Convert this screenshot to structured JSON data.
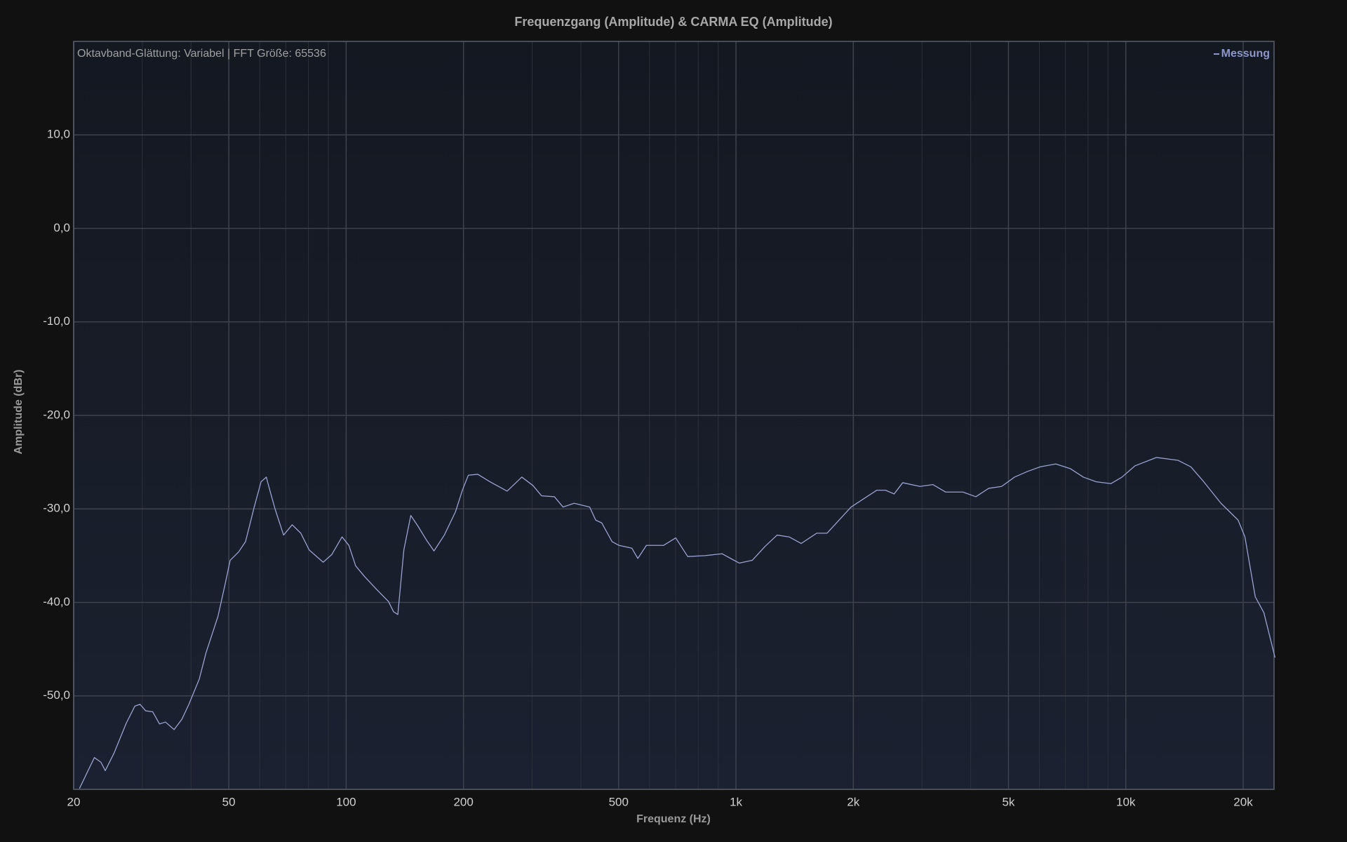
{
  "chart_data": {
    "type": "line",
    "title": "Frequenzgang (Amplitude) & CARMA EQ (Amplitude)",
    "annotation": "Oktavband-Glättung: Variabel | FFT Größe: 65536",
    "x_label": "Frequenz (Hz)",
    "y_label": "Amplitude (dBr)",
    "xscale": "log",
    "grid": true,
    "legend": "top-right",
    "xlim": [
      20,
      24000
    ],
    "ylim": [
      -60,
      20
    ],
    "xticks": [
      20,
      50,
      100,
      200,
      500,
      {
        "value": 1000,
        "label": "1k"
      },
      {
        "value": 2000,
        "label": "2k"
      },
      {
        "value": 5000,
        "label": "5k"
      },
      {
        "value": 10000,
        "label": "10k"
      },
      {
        "value": 20000,
        "label": "20k"
      }
    ],
    "yticks": [
      {
        "value": -50,
        "label": "-50,0"
      },
      {
        "value": -40,
        "label": "-40,0"
      },
      {
        "value": -30,
        "label": "-30,0"
      },
      {
        "value": -20,
        "label": "-20,0"
      },
      {
        "value": -10,
        "label": "-10,0"
      },
      {
        "value": 0,
        "label": "0,0"
      },
      {
        "value": 10,
        "label": "10,0"
      }
    ],
    "x": [
      20.7,
      22.6,
      23.5,
      24.1,
      25.4,
      27.3,
      28.7,
      29.6,
      30.6,
      31.9,
      33.2,
      34.4,
      36.2,
      37.9,
      39.5,
      42.0,
      43.7,
      46.9,
      48.9,
      50.4,
      53.0,
      55.2,
      58.1,
      60.5,
      62.4,
      63.7,
      65.7,
      69.1,
      72.7,
      76.5,
      80.4,
      87.3,
      91.8,
      97.6,
      101.6,
      105.8,
      111.3,
      119.6,
      128.4,
      132.3,
      135.7,
      140.6,
      146.5,
      152.6,
      160.5,
      168,
      178.6,
      190.8,
      198.7,
      205.8,
      217.6,
      233.8,
      258.8,
      282.2,
      301.4,
      317.1,
      342.2,
      360,
      384.5,
      421.4,
      436.7,
      452.5,
      481,
      500.9,
      540.5,
      560,
      589.2,
      652.4,
      700.4,
      752,
      832,
      921,
      969,
      1020,
      1101,
      1188,
      1275,
      1369,
      1470,
      1611,
      1712,
      1829,
      1974,
      2130,
      2298,
      2418,
      2545,
      2677,
      2964,
      3198,
      3451,
      3820,
      4123,
      4450,
      4802,
      5183,
      5593,
      6037,
      6613,
      7208,
      7779,
      8396,
      9153,
      9778,
      10551,
      11980,
      13603,
      14682,
      15846,
      17540,
      19410,
      20210,
      21480,
      22600,
      24140
    ],
    "series": [
      {
        "name": "Messung",
        "color": "#9aa3d0",
        "values": [
          -59.9,
          -56.6,
          -57.1,
          -58.0,
          -56.1,
          -52.9,
          -51.1,
          -50.9,
          -51.6,
          -51.7,
          -53.0,
          -52.8,
          -53.6,
          -52.5,
          -50.9,
          -48.2,
          -45.4,
          -41.5,
          -38.1,
          -35.5,
          -34.6,
          -33.5,
          -29.8,
          -27.1,
          -26.6,
          -28.0,
          -30.0,
          -32.8,
          -31.7,
          -32.6,
          -34.4,
          -35.7,
          -34.9,
          -33.0,
          -33.9,
          -36.1,
          -37.2,
          -38.6,
          -39.9,
          -41.0,
          -41.3,
          -34.4,
          -30.7,
          -31.8,
          -33.3,
          -34.5,
          -32.8,
          -30.3,
          -28.0,
          -26.4,
          -26.3,
          -27.1,
          -28.1,
          -26.6,
          -27.5,
          -28.6,
          -28.7,
          -29.8,
          -29.4,
          -29.8,
          -31.2,
          -31.5,
          -33.5,
          -33.9,
          -34.2,
          -35.3,
          -33.9,
          -33.9,
          -33.1,
          -35.1,
          -35.0,
          -34.8,
          -35.3,
          -35.8,
          -35.5,
          -34.0,
          -32.8,
          -33.0,
          -33.7,
          -32.6,
          -32.6,
          -31.3,
          -29.8,
          -28.9,
          -28.0,
          -28.0,
          -28.4,
          -27.2,
          -27.6,
          -27.4,
          -28.2,
          -28.2,
          -28.7,
          -27.8,
          -27.6,
          -26.6,
          -26.0,
          -25.5,
          -25.2,
          -25.7,
          -26.6,
          -27.1,
          -27.3,
          -26.6,
          -25.4,
          -24.5,
          -24.8,
          -25.5,
          -27.1,
          -29.4,
          -31.2,
          -33.0,
          -39.4,
          -41.1,
          -45.9
        ]
      }
    ]
  }
}
